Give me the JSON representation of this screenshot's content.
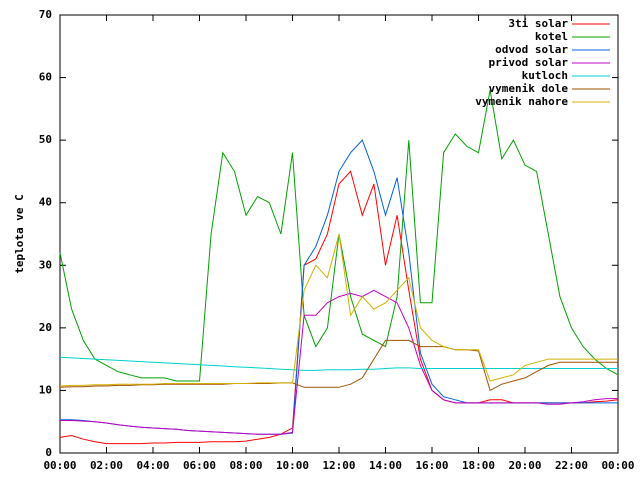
{
  "chart_data": {
    "type": "line",
    "ylabel": "teplota ve C",
    "x": [
      0,
      0.5,
      1,
      1.5,
      2,
      2.5,
      3,
      3.5,
      4,
      4.5,
      5,
      5.5,
      6,
      6.5,
      7,
      7.5,
      8,
      8.5,
      9,
      9.5,
      10,
      10.5,
      11,
      11.5,
      12,
      12.5,
      13,
      13.5,
      14,
      14.5,
      15,
      15.5,
      16,
      16.5,
      17,
      17.5,
      18,
      18.5,
      19,
      19.5,
      20,
      20.5,
      21,
      21.5,
      22,
      22.5,
      23,
      23.5,
      24
    ],
    "xlim": [
      0,
      24
    ],
    "xticks": [
      {
        "value": 0,
        "label": "00:00"
      },
      {
        "value": 2,
        "label": "02:00"
      },
      {
        "value": 4,
        "label": "04:00"
      },
      {
        "value": 6,
        "label": "06:00"
      },
      {
        "value": 8,
        "label": "08:00"
      },
      {
        "value": 10,
        "label": "10:00"
      },
      {
        "value": 12,
        "label": "12:00"
      },
      {
        "value": 14,
        "label": "14:00"
      },
      {
        "value": 16,
        "label": "16:00"
      },
      {
        "value": 18,
        "label": "18:00"
      },
      {
        "value": 20,
        "label": "20:00"
      },
      {
        "value": 22,
        "label": "22:00"
      },
      {
        "value": 24,
        "label": "00:00"
      }
    ],
    "ylim": [
      0,
      70
    ],
    "yticks": [
      0,
      10,
      20,
      30,
      40,
      50,
      60,
      70
    ],
    "legend": "top-right",
    "series": [
      {
        "name": "3ti solar",
        "color": "#ff0000",
        "values": [
          2.5,
          2.8,
          2.2,
          1.8,
          1.5,
          1.5,
          1.5,
          1.5,
          1.6,
          1.6,
          1.7,
          1.7,
          1.7,
          1.8,
          1.8,
          1.8,
          1.9,
          2.2,
          2.5,
          3,
          4,
          30,
          31,
          35,
          43,
          45,
          38,
          43,
          30,
          38,
          26,
          15,
          10,
          8.5,
          8,
          8,
          8,
          8.5,
          8.5,
          8,
          8,
          8,
          8,
          8,
          8,
          8,
          8.2,
          8.3,
          8.5
        ]
      },
      {
        "name": "kotel",
        "color": "#00a000",
        "values": [
          32,
          23,
          18,
          15,
          14,
          13,
          12.5,
          12,
          12,
          12,
          11.5,
          11.5,
          11.5,
          35,
          48,
          45,
          38,
          41,
          40,
          35,
          48,
          22,
          17,
          20,
          35,
          25,
          19,
          18,
          17,
          25,
          50,
          24,
          24,
          48,
          51,
          49,
          48,
          58,
          47,
          50,
          46,
          45,
          35,
          25,
          20,
          17,
          15,
          13.5,
          12.5
        ]
      },
      {
        "name": "odvod solar",
        "color": "#0060e0",
        "values": [
          5.3,
          5.3,
          5.2,
          5,
          4.8,
          4.5,
          4.3,
          4.1,
          4,
          3.9,
          3.8,
          3.6,
          3.5,
          3.4,
          3.3,
          3.2,
          3.1,
          3,
          3,
          3,
          3.2,
          30,
          33,
          38,
          45,
          48,
          50,
          45,
          38,
          44,
          32,
          16,
          11,
          9,
          8.5,
          8,
          8,
          8,
          8,
          8,
          8,
          8,
          8,
          8,
          8,
          8,
          8,
          8,
          8
        ]
      },
      {
        "name": "privod solar",
        "color": "#c000c0",
        "values": [
          5.2,
          5.2,
          5.1,
          5,
          4.8,
          4.5,
          4.3,
          4.1,
          4,
          3.9,
          3.8,
          3.6,
          3.5,
          3.4,
          3.3,
          3.2,
          3.1,
          3,
          3,
          3,
          3.3,
          22,
          22,
          24,
          25,
          25.5,
          25,
          26,
          25,
          24,
          20,
          14,
          10,
          8.5,
          8,
          8,
          8,
          8,
          8,
          8,
          8,
          8,
          7.8,
          7.8,
          8,
          8.2,
          8.5,
          8.7,
          8.7
        ]
      },
      {
        "name": "kutloch",
        "color": "#00d0d0",
        "values": [
          15.3,
          15.2,
          15.1,
          15,
          14.9,
          14.8,
          14.7,
          14.6,
          14.5,
          14.4,
          14.3,
          14.2,
          14.1,
          14,
          13.9,
          13.8,
          13.7,
          13.6,
          13.5,
          13.4,
          13.3,
          13.2,
          13.2,
          13.3,
          13.3,
          13.3,
          13.4,
          13.4,
          13.5,
          13.6,
          13.6,
          13.5,
          13.5,
          13.5,
          13.5,
          13.5,
          13.5,
          13.5,
          13.5,
          13.5,
          13.5,
          13.5,
          13.5,
          13.5,
          13.5,
          13.5,
          13.5,
          13.5,
          13.5
        ]
      },
      {
        "name": "vymenik dole",
        "color": "#a05000",
        "values": [
          10.5,
          10.6,
          10.6,
          10.7,
          10.7,
          10.8,
          10.8,
          10.9,
          10.9,
          11,
          11,
          11,
          11,
          11,
          11,
          11.1,
          11.1,
          11.1,
          11.1,
          11.2,
          11.2,
          10.5,
          10.5,
          10.5,
          10.5,
          11,
          12,
          15,
          18,
          18,
          18,
          17,
          17,
          17,
          16.5,
          16.5,
          16.3,
          10,
          11,
          11.5,
          12,
          13,
          14,
          14.5,
          14.5,
          14.5,
          14.5,
          14.5,
          14.5
        ]
      },
      {
        "name": "vymenik nahore",
        "color": "#d0b000",
        "values": [
          10.7,
          10.8,
          10.8,
          10.9,
          10.9,
          11,
          11,
          11,
          11,
          11.1,
          11.1,
          11.1,
          11.1,
          11.1,
          11.1,
          11.1,
          11.1,
          11.2,
          11.2,
          11.2,
          11.2,
          26,
          30,
          28,
          35,
          22,
          25,
          23,
          24,
          26,
          28,
          20,
          18,
          17,
          16.5,
          16.5,
          16.5,
          11.5,
          12,
          12.5,
          14,
          14.5,
          15,
          15,
          15,
          15,
          15,
          15,
          15
        ]
      }
    ]
  }
}
